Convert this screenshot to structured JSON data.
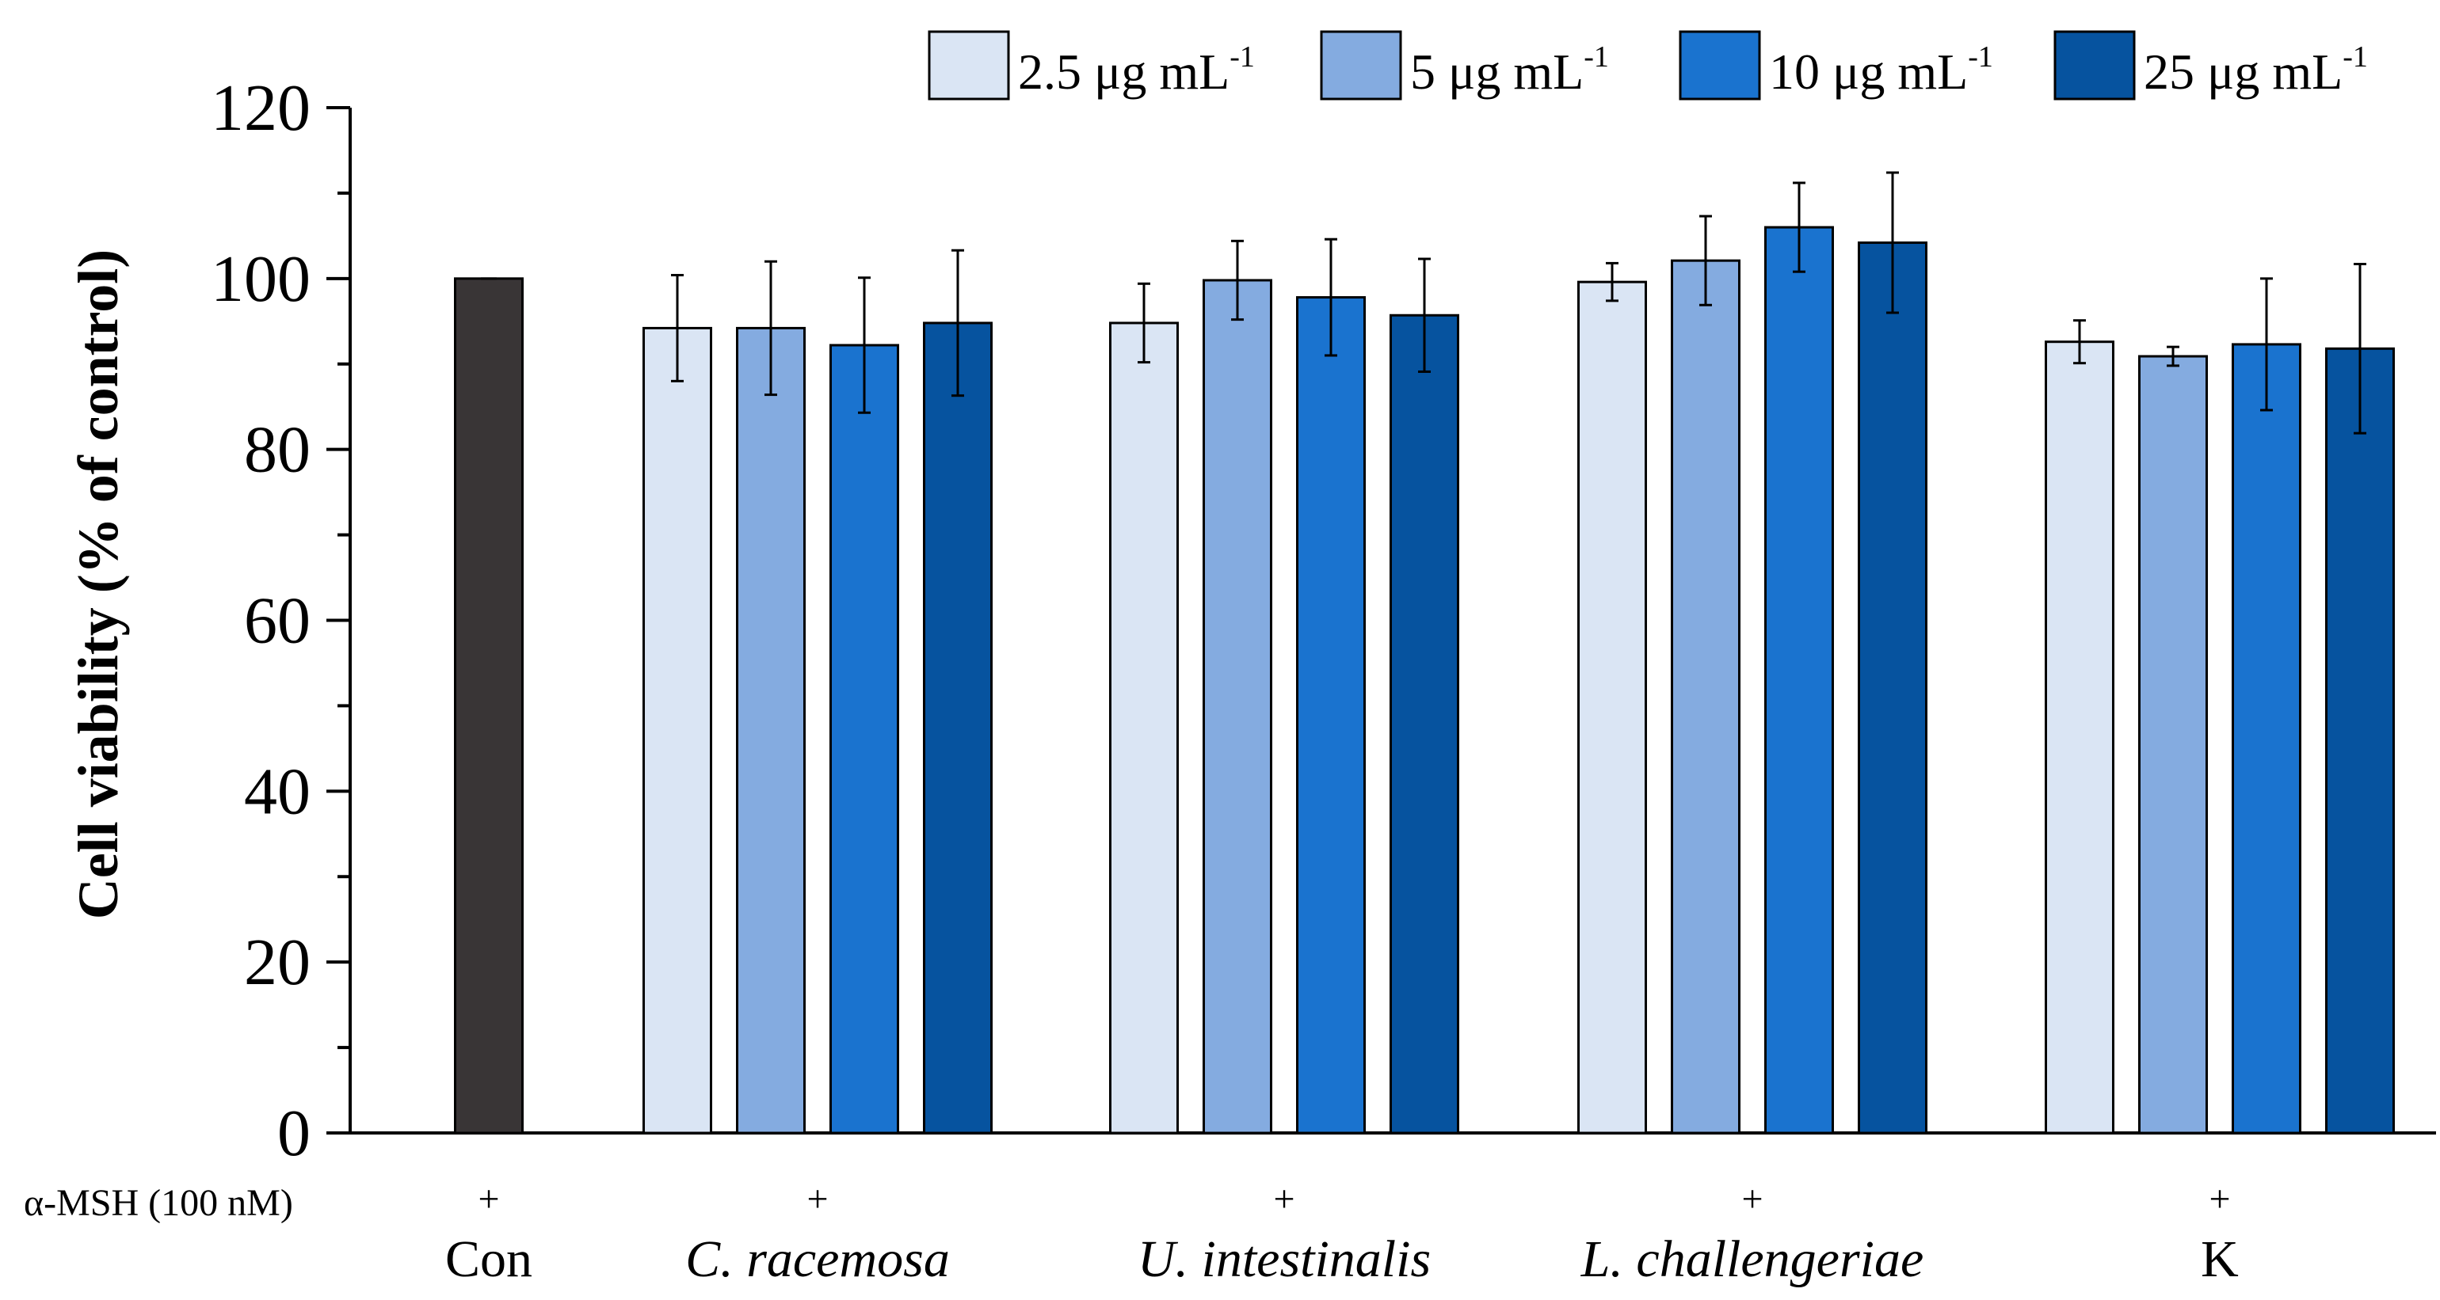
{
  "chart_data": {
    "type": "bar",
    "ylabel": "Cell viability (% of control)",
    "ylim": [
      0,
      120
    ],
    "yticks": [
      0,
      20,
      40,
      60,
      80,
      100,
      120
    ],
    "row_label": "α-MSH (100 nM)",
    "control": {
      "label": "Con",
      "treatment": "+",
      "value": 100,
      "error": 0,
      "color": "#393536"
    },
    "categories": [
      {
        "label": "C. racemosa",
        "italic": true,
        "treatment": "+"
      },
      {
        "label": "U. intestinalis",
        "italic": true,
        "treatment": "+"
      },
      {
        "label": "L. challengeriae",
        "italic": true,
        "treatment": "+"
      },
      {
        "label": "K",
        "italic": false,
        "treatment": "+"
      }
    ],
    "series": [
      {
        "name": "2.5 μg mL",
        "unit_exp": "-1",
        "color": "#dae5f4",
        "values": [
          94.2,
          94.8,
          99.6,
          92.6
        ],
        "errors": [
          6.2,
          4.6,
          2.2,
          2.5
        ]
      },
      {
        "name": "5 μg mL",
        "unit_exp": "-1",
        "color": "#84abe0",
        "values": [
          94.2,
          99.8,
          102.1,
          90.9
        ],
        "errors": [
          7.8,
          4.6,
          5.2,
          1.1
        ]
      },
      {
        "name": "10 μg mL",
        "unit_exp": "-1",
        "color": "#1a73cf",
        "values": [
          92.2,
          97.8,
          106.0,
          92.3
        ],
        "errors": [
          7.9,
          6.8,
          5.2,
          7.7
        ]
      },
      {
        "name": "25 μg mL",
        "unit_exp": "-1",
        "color": "#06539f",
        "values": [
          94.8,
          95.7,
          104.2,
          91.8
        ],
        "errors": [
          8.5,
          6.6,
          8.2,
          9.9
        ]
      }
    ]
  }
}
